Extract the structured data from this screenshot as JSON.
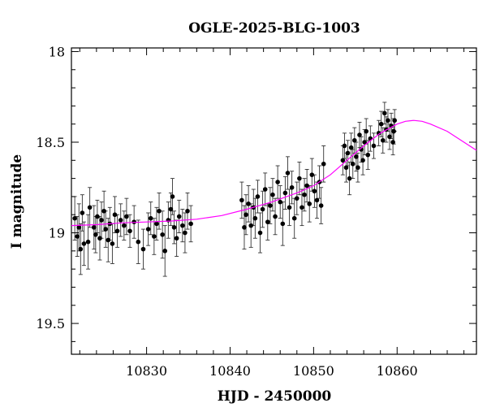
{
  "chart_data": {
    "type": "scatter",
    "title": "OGLE-2025-BLG-1003",
    "xlabel": "HJD - 2450000",
    "ylabel": "I magnitude",
    "xlim": [
      10821.0,
      10869.5
    ],
    "ylim": [
      19.67,
      17.98
    ],
    "y_inverted": true,
    "x_ticks": [
      10830,
      10840,
      10850,
      10860
    ],
    "y_ticks": [
      18,
      18.5,
      19,
      19.5
    ],
    "x_tick_labels": [
      "10830",
      "10840",
      "10850",
      "10860"
    ],
    "y_tick_labels": [
      "18",
      "18.5",
      "19",
      "19.5"
    ],
    "grid": false,
    "legend": "none",
    "series": [
      {
        "kind": "points_with_errorbars",
        "color": "#000000",
        "points": [
          {
            "x": 10821.4,
            "y": 18.92,
            "err": 0.12
          },
          {
            "x": 10821.7,
            "y": 19.02,
            "err": 0.11
          },
          {
            "x": 10821.9,
            "y": 18.97,
            "err": 0.13
          },
          {
            "x": 10822.1,
            "y": 19.09,
            "err": 0.14
          },
          {
            "x": 10822.3,
            "y": 18.89,
            "err": 0.1
          },
          {
            "x": 10822.5,
            "y": 19.06,
            "err": 0.12
          },
          {
            "x": 10823.0,
            "y": 19.05,
            "err": 0.15
          },
          {
            "x": 10823.2,
            "y": 18.86,
            "err": 0.11
          },
          {
            "x": 10823.7,
            "y": 18.97,
            "err": 0.12
          },
          {
            "x": 10823.9,
            "y": 19.01,
            "err": 0.1
          },
          {
            "x": 10824.1,
            "y": 18.91,
            "err": 0.09
          },
          {
            "x": 10824.4,
            "y": 19.03,
            "err": 0.12
          },
          {
            "x": 10824.6,
            "y": 18.93,
            "err": 0.1
          },
          {
            "x": 10824.9,
            "y": 18.88,
            "err": 0.11
          },
          {
            "x": 10825.1,
            "y": 18.98,
            "err": 0.1
          },
          {
            "x": 10825.4,
            "y": 19.04,
            "err": 0.12
          },
          {
            "x": 10825.6,
            "y": 18.95,
            "err": 0.09
          },
          {
            "x": 10825.9,
            "y": 19.06,
            "err": 0.11
          },
          {
            "x": 10826.2,
            "y": 18.9,
            "err": 0.1
          },
          {
            "x": 10826.5,
            "y": 18.99,
            "err": 0.09
          },
          {
            "x": 10826.9,
            "y": 18.93,
            "err": 0.09
          },
          {
            "x": 10827.3,
            "y": 18.96,
            "err": 0.08
          },
          {
            "x": 10827.6,
            "y": 18.91,
            "err": 0.1
          },
          {
            "x": 10828.0,
            "y": 18.99,
            "err": 0.09
          },
          {
            "x": 10828.5,
            "y": 18.94,
            "err": 0.09
          },
          {
            "x": 10829.0,
            "y": 19.05,
            "err": 0.12
          },
          {
            "x": 10829.6,
            "y": 19.09,
            "err": 0.11
          },
          {
            "x": 10830.2,
            "y": 18.98,
            "err": 0.09
          },
          {
            "x": 10830.5,
            "y": 18.92,
            "err": 0.09
          },
          {
            "x": 10830.9,
            "y": 19.02,
            "err": 0.1
          },
          {
            "x": 10831.2,
            "y": 18.95,
            "err": 0.09
          },
          {
            "x": 10831.5,
            "y": 18.88,
            "err": 0.1
          },
          {
            "x": 10831.9,
            "y": 19.01,
            "err": 0.13
          },
          {
            "x": 10832.2,
            "y": 19.1,
            "err": 0.14
          },
          {
            "x": 10832.6,
            "y": 18.93,
            "err": 0.1
          },
          {
            "x": 10832.9,
            "y": 18.87,
            "err": 0.09
          },
          {
            "x": 10833.1,
            "y": 18.8,
            "err": 0.1
          },
          {
            "x": 10833.3,
            "y": 18.97,
            "err": 0.09
          },
          {
            "x": 10833.6,
            "y": 19.03,
            "err": 0.1
          },
          {
            "x": 10833.9,
            "y": 18.91,
            "err": 0.09
          },
          {
            "x": 10834.3,
            "y": 18.96,
            "err": 0.09
          },
          {
            "x": 10834.6,
            "y": 19.0,
            "err": 0.11
          },
          {
            "x": 10834.9,
            "y": 18.88,
            "err": 0.1
          },
          {
            "x": 10835.3,
            "y": 18.95,
            "err": 0.1
          },
          {
            "x": 10841.4,
            "y": 18.82,
            "err": 0.1
          },
          {
            "x": 10841.7,
            "y": 18.97,
            "err": 0.12
          },
          {
            "x": 10841.9,
            "y": 18.9,
            "err": 0.11
          },
          {
            "x": 10842.2,
            "y": 18.84,
            "err": 0.1
          },
          {
            "x": 10842.5,
            "y": 18.96,
            "err": 0.12
          },
          {
            "x": 10842.8,
            "y": 18.86,
            "err": 0.1
          },
          {
            "x": 10843.0,
            "y": 18.92,
            "err": 0.11
          },
          {
            "x": 10843.3,
            "y": 18.8,
            "err": 0.09
          },
          {
            "x": 10843.6,
            "y": 19.0,
            "err": 0.11
          },
          {
            "x": 10843.9,
            "y": 18.87,
            "err": 0.1
          },
          {
            "x": 10844.2,
            "y": 18.76,
            "err": 0.09
          },
          {
            "x": 10844.5,
            "y": 18.94,
            "err": 0.1
          },
          {
            "x": 10844.8,
            "y": 18.85,
            "err": 0.1
          },
          {
            "x": 10845.1,
            "y": 18.79,
            "err": 0.09
          },
          {
            "x": 10845.4,
            "y": 18.91,
            "err": 0.1
          },
          {
            "x": 10845.7,
            "y": 18.72,
            "err": 0.09
          },
          {
            "x": 10846.0,
            "y": 18.83,
            "err": 0.09
          },
          {
            "x": 10846.3,
            "y": 18.95,
            "err": 0.12
          },
          {
            "x": 10846.6,
            "y": 18.78,
            "err": 0.09
          },
          {
            "x": 10846.9,
            "y": 18.67,
            "err": 0.09
          },
          {
            "x": 10847.1,
            "y": 18.86,
            "err": 0.1
          },
          {
            "x": 10847.4,
            "y": 18.75,
            "err": 0.09
          },
          {
            "x": 10847.7,
            "y": 18.92,
            "err": 0.11
          },
          {
            "x": 10848.0,
            "y": 18.81,
            "err": 0.09
          },
          {
            "x": 10848.3,
            "y": 18.7,
            "err": 0.09
          },
          {
            "x": 10848.6,
            "y": 18.86,
            "err": 0.1
          },
          {
            "x": 10848.9,
            "y": 18.79,
            "err": 0.09
          },
          {
            "x": 10849.2,
            "y": 18.74,
            "err": 0.09
          },
          {
            "x": 10849.5,
            "y": 18.84,
            "err": 0.1
          },
          {
            "x": 10849.8,
            "y": 18.68,
            "err": 0.09
          },
          {
            "x": 10850.1,
            "y": 18.77,
            "err": 0.09
          },
          {
            "x": 10850.4,
            "y": 18.82,
            "err": 0.1
          },
          {
            "x": 10850.7,
            "y": 18.72,
            "err": 0.09
          },
          {
            "x": 10850.9,
            "y": 18.85,
            "err": 0.1
          },
          {
            "x": 10851.2,
            "y": 18.62,
            "err": 0.1
          },
          {
            "x": 10853.5,
            "y": 18.6,
            "err": 0.08
          },
          {
            "x": 10853.7,
            "y": 18.52,
            "err": 0.07
          },
          {
            "x": 10853.9,
            "y": 18.64,
            "err": 0.08
          },
          {
            "x": 10854.1,
            "y": 18.56,
            "err": 0.07
          },
          {
            "x": 10854.3,
            "y": 18.7,
            "err": 0.09
          },
          {
            "x": 10854.5,
            "y": 18.53,
            "err": 0.08
          },
          {
            "x": 10854.7,
            "y": 18.62,
            "err": 0.08
          },
          {
            "x": 10854.9,
            "y": 18.49,
            "err": 0.07
          },
          {
            "x": 10855.1,
            "y": 18.58,
            "err": 0.08
          },
          {
            "x": 10855.3,
            "y": 18.64,
            "err": 0.08
          },
          {
            "x": 10855.5,
            "y": 18.46,
            "err": 0.07
          },
          {
            "x": 10855.7,
            "y": 18.54,
            "err": 0.07
          },
          {
            "x": 10855.9,
            "y": 18.6,
            "err": 0.08
          },
          {
            "x": 10856.1,
            "y": 18.5,
            "err": 0.07
          },
          {
            "x": 10856.3,
            "y": 18.44,
            "err": 0.07
          },
          {
            "x": 10856.5,
            "y": 18.57,
            "err": 0.08
          },
          {
            "x": 10856.8,
            "y": 18.48,
            "err": 0.07
          },
          {
            "x": 10857.2,
            "y": 18.52,
            "err": 0.07
          },
          {
            "x": 10857.8,
            "y": 18.45,
            "err": 0.07
          },
          {
            "x": 10858.1,
            "y": 18.4,
            "err": 0.07
          },
          {
            "x": 10858.3,
            "y": 18.49,
            "err": 0.07
          },
          {
            "x": 10858.5,
            "y": 18.34,
            "err": 0.06
          },
          {
            "x": 10858.7,
            "y": 18.43,
            "err": 0.07
          },
          {
            "x": 10858.9,
            "y": 18.38,
            "err": 0.06
          },
          {
            "x": 10859.1,
            "y": 18.47,
            "err": 0.07
          },
          {
            "x": 10859.3,
            "y": 18.41,
            "err": 0.07
          },
          {
            "x": 10859.5,
            "y": 18.5,
            "err": 0.07
          },
          {
            "x": 10859.6,
            "y": 18.44,
            "err": 0.07
          },
          {
            "x": 10859.7,
            "y": 18.38,
            "err": 0.06
          }
        ]
      },
      {
        "kind": "model_line",
        "color": "#ff00ff",
        "points": [
          {
            "x": 10821.0,
            "y": 18.96
          },
          {
            "x": 10824.0,
            "y": 18.955
          },
          {
            "x": 10827.0,
            "y": 18.945
          },
          {
            "x": 10830.0,
            "y": 18.94
          },
          {
            "x": 10833.0,
            "y": 18.935
          },
          {
            "x": 10836.0,
            "y": 18.925
          },
          {
            "x": 10839.0,
            "y": 18.905
          },
          {
            "x": 10842.0,
            "y": 18.87
          },
          {
            "x": 10845.0,
            "y": 18.83
          },
          {
            "x": 10848.0,
            "y": 18.78
          },
          {
            "x": 10850.0,
            "y": 18.74
          },
          {
            "x": 10852.0,
            "y": 18.68
          },
          {
            "x": 10854.0,
            "y": 18.6
          },
          {
            "x": 10856.0,
            "y": 18.52
          },
          {
            "x": 10858.0,
            "y": 18.45
          },
          {
            "x": 10860.0,
            "y": 18.4
          },
          {
            "x": 10861.0,
            "y": 18.385
          },
          {
            "x": 10862.0,
            "y": 18.38
          },
          {
            "x": 10863.0,
            "y": 18.385
          },
          {
            "x": 10864.0,
            "y": 18.4
          },
          {
            "x": 10866.0,
            "y": 18.44
          },
          {
            "x": 10868.0,
            "y": 18.5
          },
          {
            "x": 10869.5,
            "y": 18.545
          }
        ]
      }
    ]
  }
}
